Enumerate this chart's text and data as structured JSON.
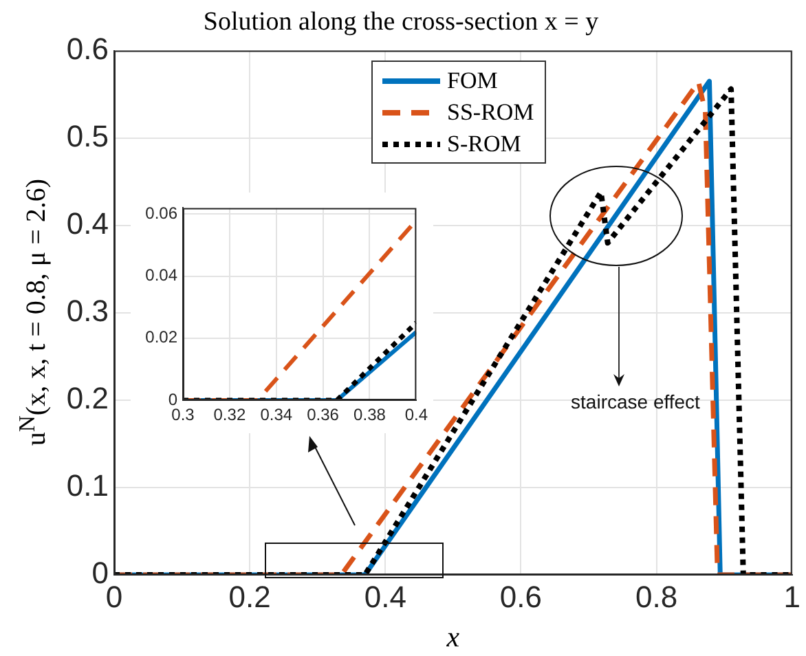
{
  "chart_data": [
    {
      "type": "line",
      "title": "Solution along the cross-section x = y",
      "xlabel": "x",
      "ylabel": "u$^{N}$(x, x, t = 0.8, μ = 2.6)",
      "xlim": [
        0,
        1
      ],
      "ylim": [
        0,
        0.6
      ],
      "xticks": [
        0,
        0.2,
        0.4,
        0.6,
        0.8,
        1
      ],
      "yticks": [
        0,
        0.1,
        0.2,
        0.3,
        0.4,
        0.5,
        0.6
      ],
      "grid": true,
      "legend": "top",
      "marker": "none",
      "annotations": [
        "staircase effect"
      ],
      "series": [
        {
          "name": "FOM",
          "color": "#0072bd",
          "line_style": "solid",
          "x": [
            0,
            0.37,
            0.878,
            0.894,
            1
          ],
          "values": [
            0,
            0,
            0.565,
            0,
            0
          ]
        },
        {
          "name": "SS-ROM",
          "color": "#d95319",
          "line_style": "dashed",
          "x": [
            0,
            0.335,
            0.862,
            0.872,
            0.89,
            1
          ],
          "values": [
            0,
            0,
            0.564,
            0.53,
            0,
            0
          ]
        },
        {
          "name": "S-ROM",
          "color": "#000000",
          "line_style": "dotted",
          "x": [
            0,
            0.37,
            0.718,
            0.728,
            0.91,
            0.928,
            1
          ],
          "values": [
            0,
            0,
            0.438,
            0.38,
            0.556,
            0,
            0
          ]
        }
      ]
    },
    {
      "type": "line",
      "xlim": [
        0.3,
        0.4
      ],
      "ylim": [
        0,
        0.062
      ],
      "xticks": [
        0.3,
        0.32,
        0.34,
        0.36,
        0.38,
        0.4
      ],
      "yticks": [
        0,
        0.02,
        0.04,
        0.06
      ],
      "grid": true,
      "marker": "none",
      "series": [
        {
          "color": "#0072bd",
          "line_style": "solid",
          "x": [
            0.3,
            0.366,
            0.4
          ],
          "values": [
            0,
            0,
            0.022
          ]
        },
        {
          "color": "#d95319",
          "line_style": "dashed",
          "x": [
            0.3,
            0.332,
            0.4
          ],
          "values": [
            0,
            0,
            0.058
          ]
        },
        {
          "color": "#000000",
          "line_style": "dotted",
          "x": [
            0.3,
            0.366,
            0.4
          ],
          "values": [
            0,
            0,
            0.025
          ]
        }
      ]
    }
  ]
}
